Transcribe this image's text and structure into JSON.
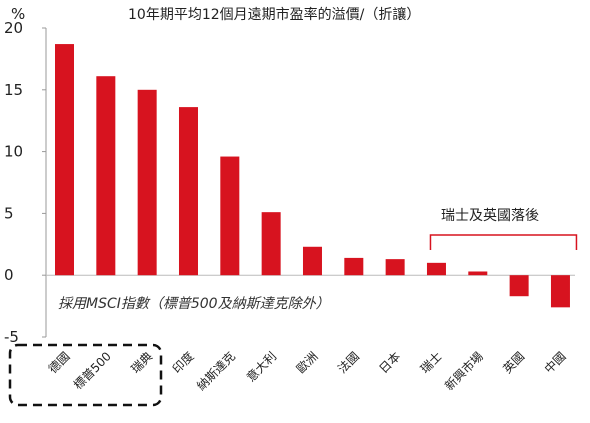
{
  "chart_data": {
    "type": "bar",
    "title": "10年期平均12個月遠期市盈率的溢價/（折讓）",
    "y_unit": "%",
    "ylim": [
      -5,
      20
    ],
    "yticks": [
      -5,
      0,
      5,
      10,
      15,
      20
    ],
    "ytick_labels": [
      "-5",
      "0",
      "5",
      "10",
      "15",
      "20"
    ],
    "categories": [
      "德國",
      "標普500",
      "瑞典",
      "印度",
      "納斯達克",
      "意大利",
      "歐洲",
      "法國",
      "日本",
      "瑞士",
      "新興市場",
      "英國",
      "中國"
    ],
    "values": [
      18.7,
      16.1,
      15.0,
      13.6,
      9.6,
      5.1,
      2.3,
      1.4,
      1.3,
      1.0,
      0.3,
      -1.7,
      -2.6
    ],
    "annotation": "採用MSCI指數（標普500及納斯達克除外）",
    "bracket_label": "瑞士及英國落後",
    "highlighted_categories": [
      "德國",
      "標普500",
      "瑞典"
    ],
    "grid": false,
    "legend": "none",
    "bar_color": "#d7131f"
  }
}
